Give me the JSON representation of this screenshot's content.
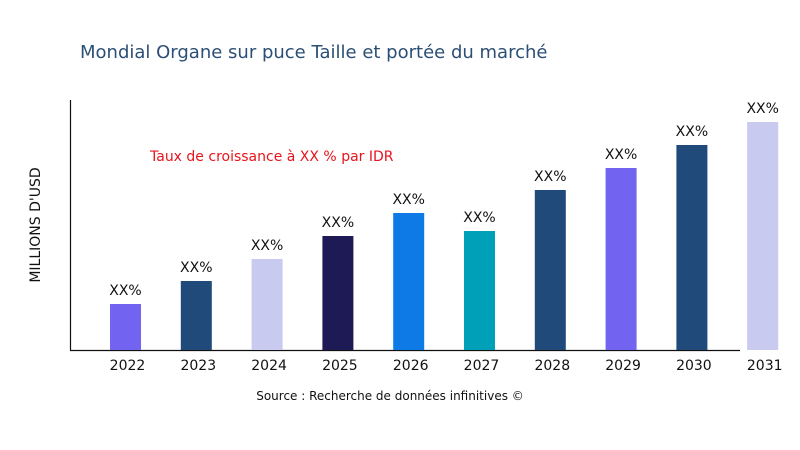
{
  "chart_data": {
    "type": "bar",
    "title": "Mondial Organe sur puce Taille et portée du marché",
    "xlabel": "",
    "ylabel": "MILLIONS D'USD",
    "categories": [
      "2022",
      "2023",
      "2024",
      "2025",
      "2026",
      "2027",
      "2028",
      "2029",
      "2030",
      "2031"
    ],
    "values": [
      46,
      69,
      91,
      114,
      137,
      119,
      160,
      182,
      205,
      228
    ],
    "data_labels": [
      "XX%",
      "XX%",
      "XX%",
      "XX%",
      "XX%",
      "XX%",
      "XX%",
      "XX%",
      "XX%",
      "XX%"
    ],
    "colors": [
      "#7264f0",
      "#1f4a7a",
      "#c8caf0",
      "#1e1a55",
      "#0d7ae6",
      "#00a0b8",
      "#1f4a7a",
      "#7264f0",
      "#1f4a7a",
      "#c8caf0"
    ],
    "ylim": [
      0,
      250
    ],
    "grid": false,
    "y_ticks_shown": false,
    "annotation": "Taux de croissance à XX % par IDR",
    "source": "Source : Recherche de données infinitives ©"
  }
}
